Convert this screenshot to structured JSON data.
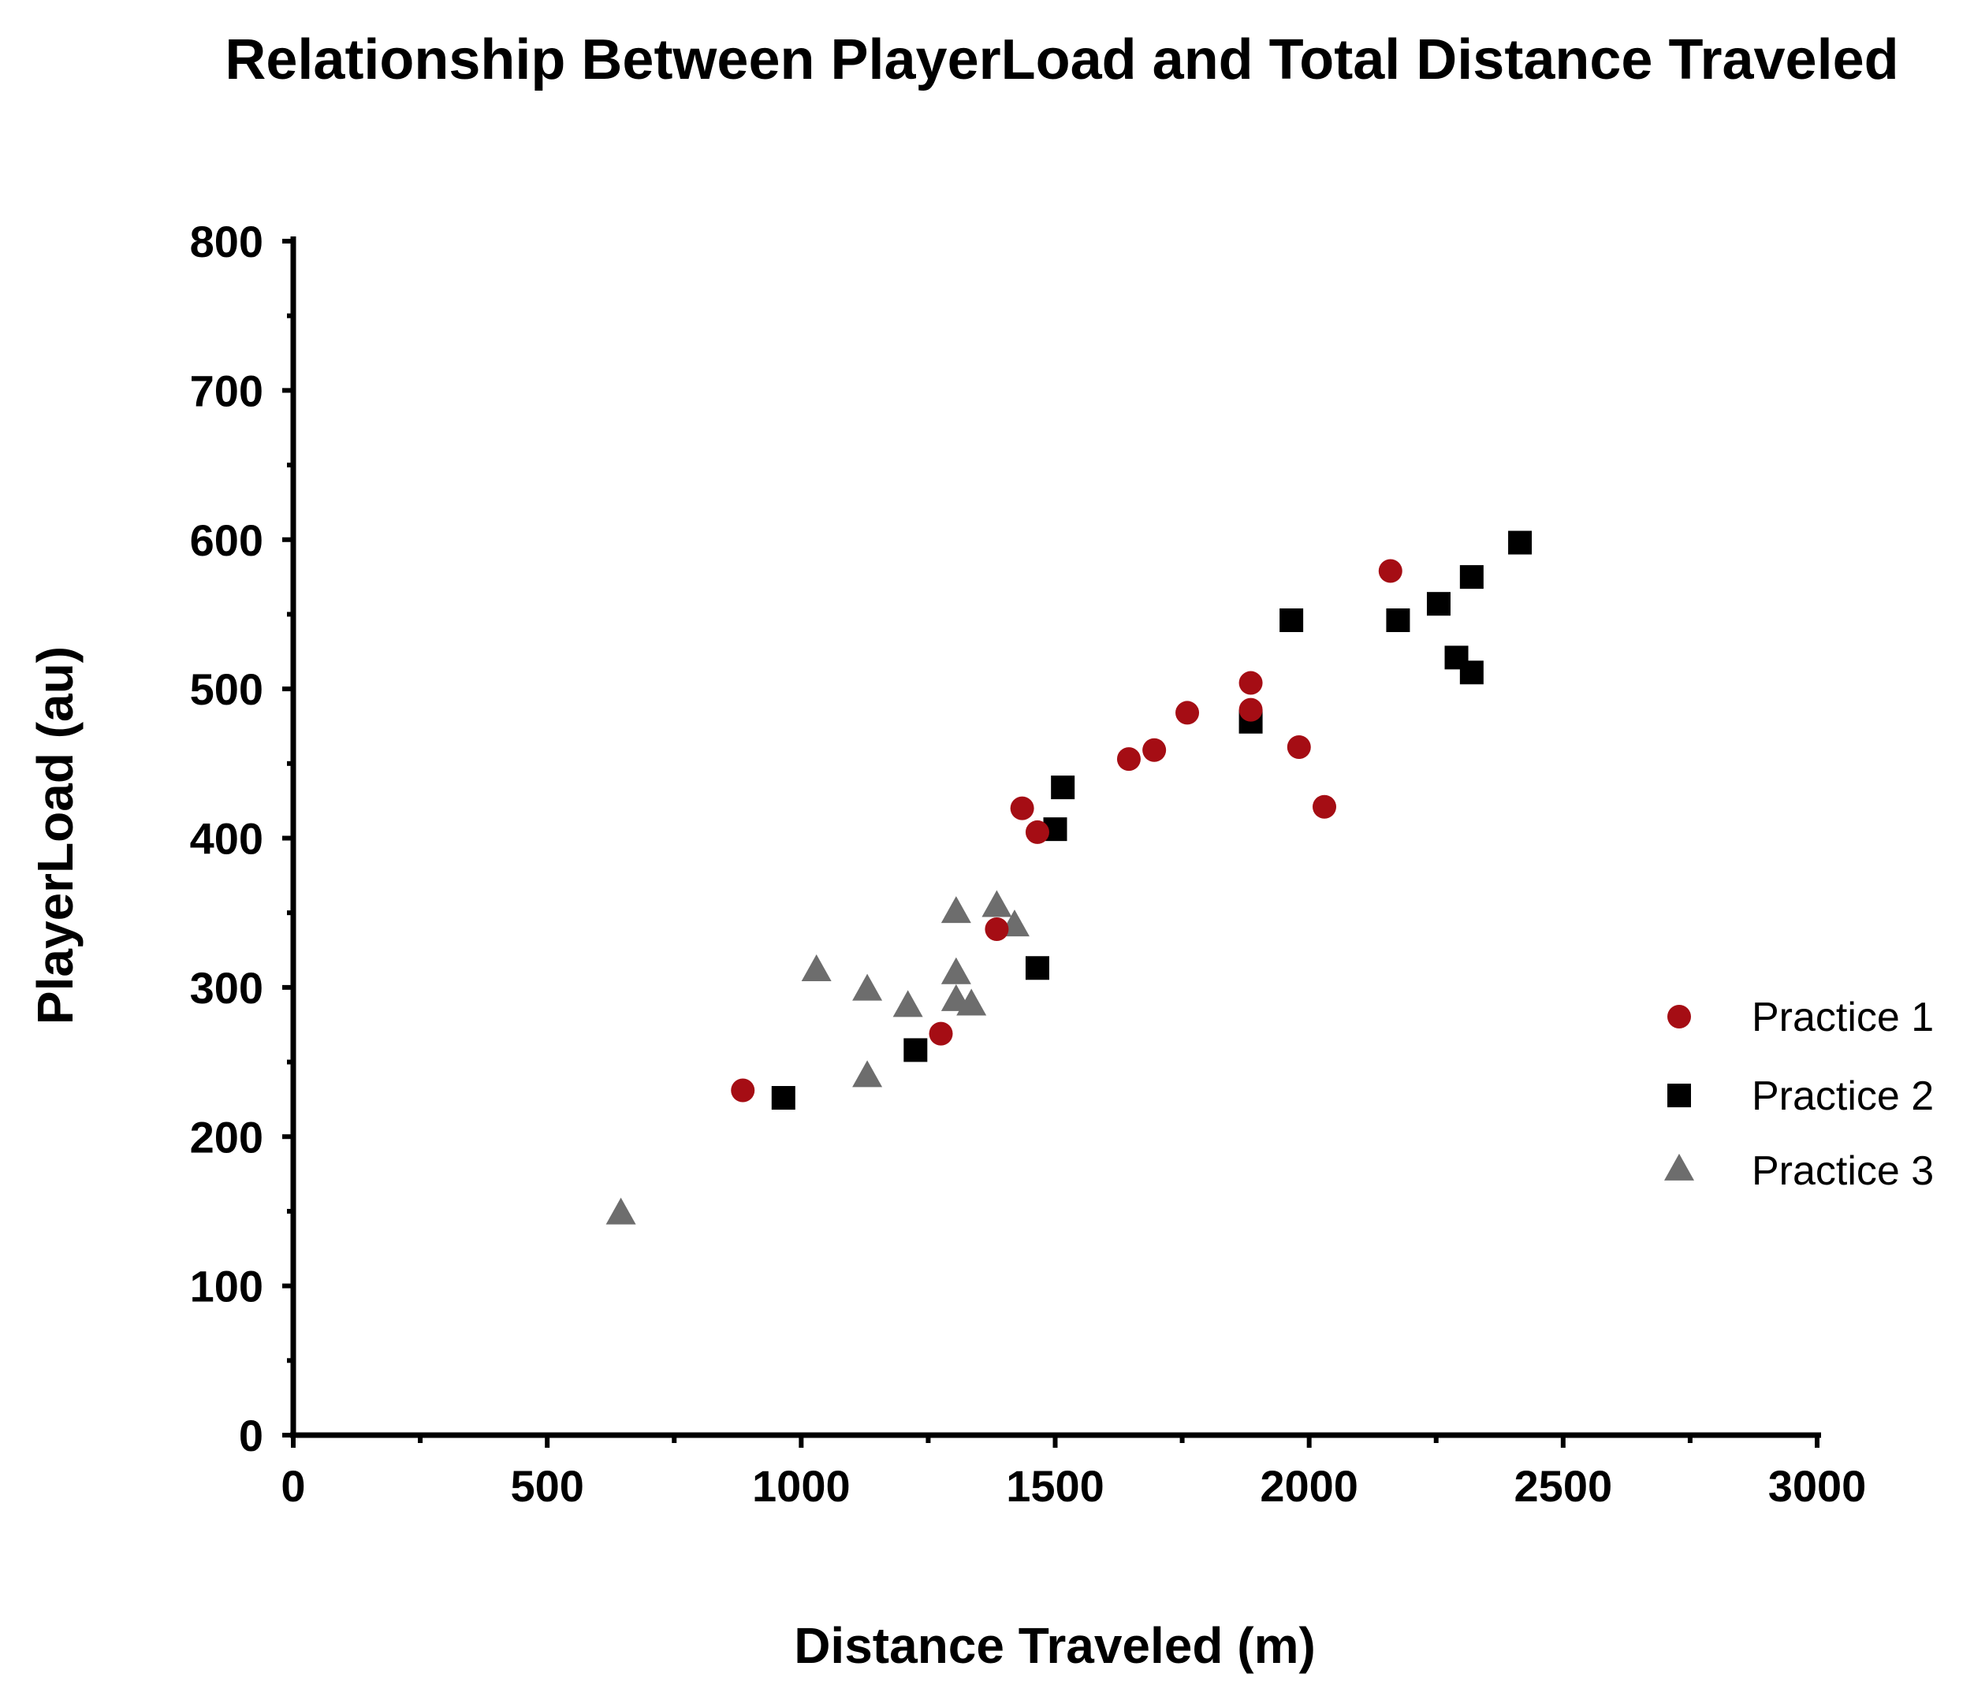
{
  "chart_data": {
    "type": "scatter",
    "title": "Relationship Between PlayerLoad and Total Distance Traveled",
    "xlabel": "Distance Traveled (m)",
    "ylabel": "PlayerLoad (au)",
    "xlim": [
      0,
      3000
    ],
    "ylim": [
      0,
      800
    ],
    "x_ticks": [
      0,
      500,
      1000,
      1500,
      2000,
      2500,
      3000
    ],
    "y_ticks": [
      0,
      100,
      200,
      300,
      400,
      500,
      600,
      700,
      800
    ],
    "x_tick_labels": [
      "0",
      "500",
      "1000",
      "1500",
      "2000",
      "2500",
      "3000"
    ],
    "y_tick_labels": [
      "0",
      "100",
      "200",
      "300",
      "400",
      "500",
      "600",
      "700",
      "800"
    ],
    "grid": false,
    "legend_position": "right",
    "series": [
      {
        "name": "Practice 1",
        "marker": "circle",
        "color": "#a50d14",
        "points": [
          [
            885,
            231
          ],
          [
            1275,
            269
          ],
          [
            1385,
            339
          ],
          [
            1435,
            420
          ],
          [
            1465,
            404
          ],
          [
            1645,
            453
          ],
          [
            1695,
            459
          ],
          [
            1760,
            484
          ],
          [
            1885,
            504
          ],
          [
            1885,
            486
          ],
          [
            1980,
            461
          ],
          [
            2030,
            421
          ],
          [
            2160,
            579
          ]
        ]
      },
      {
        "name": "Practice 2",
        "marker": "square",
        "color": "#000000",
        "points": [
          [
            965,
            226
          ],
          [
            1225,
            258
          ],
          [
            1465,
            313
          ],
          [
            1500,
            406
          ],
          [
            1515,
            434
          ],
          [
            1885,
            478
          ],
          [
            1965,
            546
          ],
          [
            2175,
            546
          ],
          [
            2255,
            557
          ],
          [
            2290,
            521
          ],
          [
            2320,
            511
          ],
          [
            2320,
            575
          ],
          [
            2415,
            598
          ]
        ]
      },
      {
        "name": "Practice 3",
        "marker": "triangle",
        "color": "#6d6d6d",
        "points": [
          [
            645,
            148
          ],
          [
            1030,
            311
          ],
          [
            1130,
            240
          ],
          [
            1130,
            298
          ],
          [
            1210,
            287
          ],
          [
            1305,
            350
          ],
          [
            1305,
            309
          ],
          [
            1305,
            291
          ],
          [
            1335,
            288
          ],
          [
            1385,
            354
          ],
          [
            1420,
            341
          ]
        ]
      }
    ]
  }
}
